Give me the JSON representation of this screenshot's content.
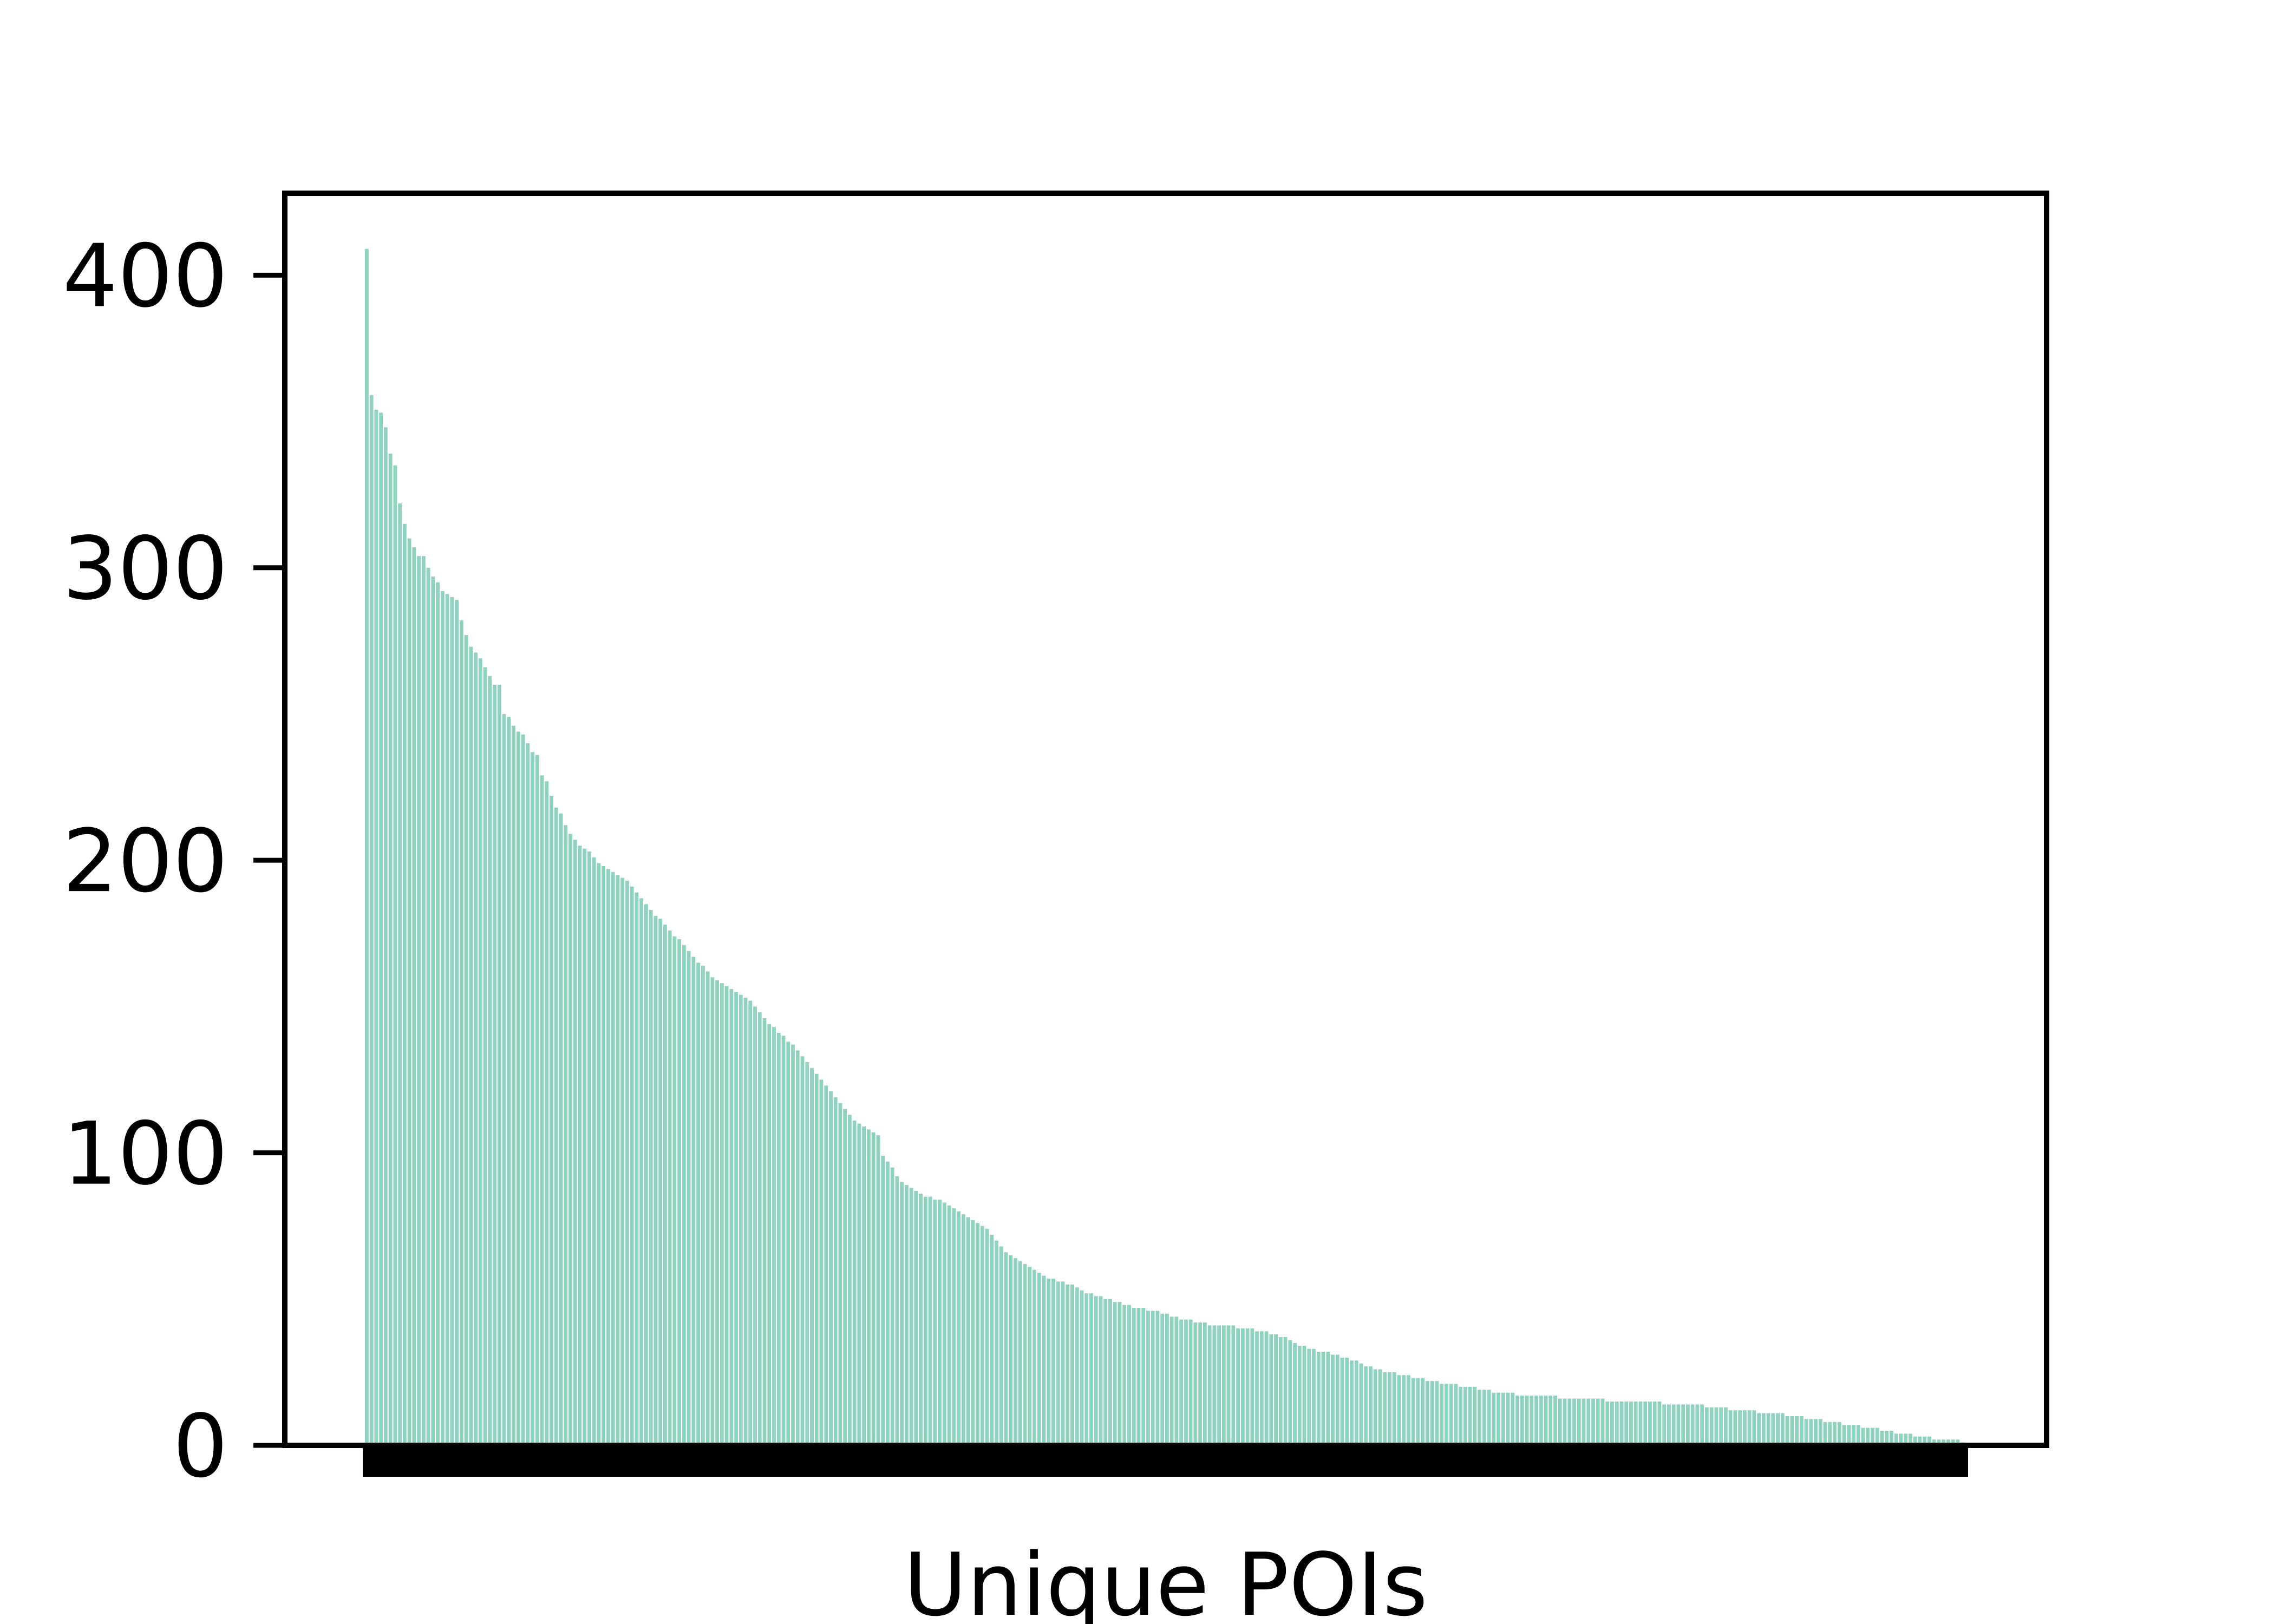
{
  "chart_data": {
    "type": "bar",
    "title": "",
    "xlabel": "Unique POIs",
    "ylabel": "",
    "ylim": [
      0,
      428
    ],
    "yticks": [
      0,
      100,
      200,
      300,
      400
    ],
    "ytick_labels": [
      "0",
      "100",
      "200",
      "300",
      "400"
    ],
    "xtick_labels_legible": false,
    "bar_color": "#8fd3bf",
    "values": [
      409,
      359,
      354,
      353,
      348,
      339,
      335,
      322,
      315,
      310,
      307,
      304,
      304,
      300,
      297,
      295,
      292,
      291,
      290,
      289,
      282,
      277,
      273,
      271,
      269,
      266,
      263,
      260,
      260,
      250,
      249,
      246,
      244,
      243,
      240,
      237,
      236,
      229,
      227,
      222,
      218,
      216,
      212,
      209,
      207,
      205,
      204,
      203,
      201,
      199,
      198,
      197,
      196,
      195,
      194,
      193,
      191,
      189,
      187,
      185,
      183,
      181,
      180,
      178,
      176,
      174,
      173,
      171,
      169,
      167,
      165,
      164,
      162,
      160,
      159,
      158,
      157,
      156,
      155,
      154,
      153,
      152,
      150,
      148,
      146,
      144,
      143,
      141,
      140,
      138,
      137,
      135,
      133,
      131,
      129,
      127,
      125,
      123,
      121,
      119,
      117,
      115,
      113,
      111,
      110,
      109,
      108,
      107,
      106,
      99,
      97,
      95,
      92,
      90,
      89,
      88,
      87,
      86,
      85,
      85,
      84,
      84,
      83,
      82,
      81,
      80,
      79,
      78,
      77,
      76,
      75,
      74,
      72,
      70,
      68,
      66,
      65,
      64,
      63,
      62,
      61,
      60,
      59,
      58,
      57,
      57,
      56,
      56,
      55,
      55,
      54,
      53,
      52,
      52,
      51,
      51,
      50,
      50,
      49,
      49,
      48,
      48,
      47,
      47,
      47,
      46,
      46,
      46,
      45,
      45,
      44,
      44,
      43,
      43,
      43,
      42,
      42,
      42,
      41,
      41,
      41,
      41,
      41,
      41,
      40,
      40,
      40,
      40,
      39,
      39,
      39,
      38,
      38,
      37,
      37,
      36,
      35,
      34,
      34,
      33,
      33,
      32,
      32,
      32,
      31,
      31,
      30,
      30,
      29,
      29,
      28,
      27,
      27,
      26,
      26,
      25,
      25,
      25,
      24,
      24,
      24,
      23,
      23,
      23,
      22,
      22,
      22,
      21,
      21,
      21,
      21,
      20,
      20,
      20,
      20,
      19,
      19,
      19,
      18,
      18,
      18,
      18,
      18,
      17,
      17,
      17,
      17,
      17,
      17,
      17,
      17,
      17,
      16,
      16,
      16,
      16,
      16,
      16,
      16,
      16,
      16,
      16,
      15,
      15,
      15,
      15,
      15,
      15,
      15,
      15,
      15,
      15,
      15,
      15,
      14,
      14,
      14,
      14,
      14,
      14,
      14,
      14,
      14,
      13,
      13,
      13,
      13,
      13,
      12,
      12,
      12,
      12,
      12,
      12,
      11,
      11,
      11,
      11,
      11,
      11,
      10,
      10,
      10,
      10,
      9,
      9,
      9,
      9,
      8,
      8,
      8,
      8,
      7,
      7,
      7,
      7,
      6,
      6,
      6,
      6,
      5,
      5,
      5,
      4,
      4,
      4,
      4,
      3,
      3,
      3,
      3,
      2,
      2,
      2,
      2,
      2,
      2,
      1
    ]
  }
}
